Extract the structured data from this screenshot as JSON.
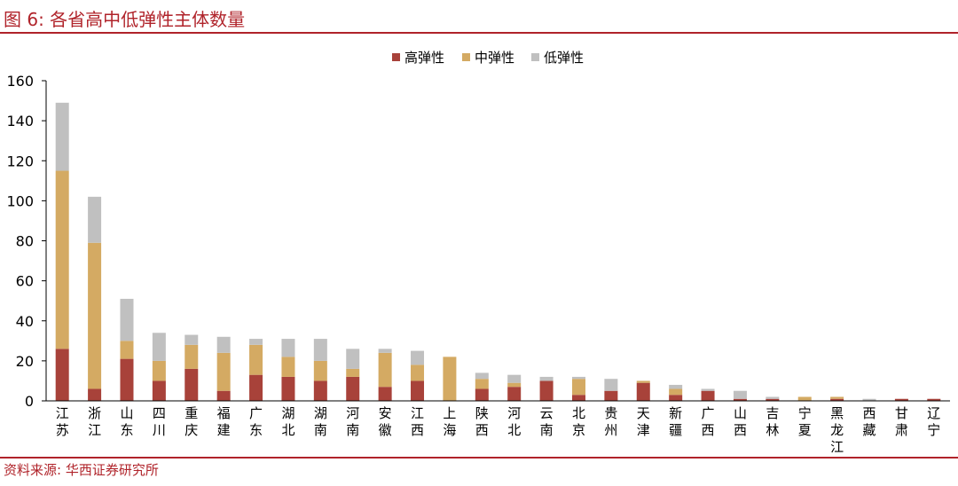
{
  "figure": {
    "title": "图 6:  各省高中低弹性主体数量",
    "source": "资料来源:  华西证券研究所"
  },
  "chart_data": {
    "type": "bar",
    "stacked": true,
    "categories": [
      "江苏",
      "浙江",
      "山东",
      "四川",
      "重庆",
      "福建",
      "广东",
      "湖北",
      "湖南",
      "河南",
      "安徽",
      "江西",
      "上海",
      "陕西",
      "河北",
      "云南",
      "北京",
      "贵州",
      "天津",
      "新疆",
      "广西",
      "山西",
      "吉林",
      "宁夏",
      "黑龙江",
      "西藏",
      "甘肃",
      "辽宁"
    ],
    "series": [
      {
        "name": "高弹性",
        "color": "#a8423a",
        "values": [
          26,
          6,
          21,
          10,
          16,
          5,
          13,
          12,
          10,
          12,
          7,
          10,
          0,
          6,
          7,
          10,
          3,
          5,
          9,
          3,
          5,
          1,
          1,
          0,
          1,
          0,
          1,
          1
        ]
      },
      {
        "name": "中弹性",
        "color": "#d4aa63",
        "values": [
          89,
          73,
          9,
          10,
          12,
          19,
          15,
          10,
          10,
          4,
          17,
          8,
          22,
          5,
          2,
          0,
          8,
          0,
          1,
          3,
          0,
          0,
          0,
          2,
          1,
          0,
          0,
          0
        ]
      },
      {
        "name": "低弹性",
        "color": "#c0c0c0",
        "values": [
          34,
          23,
          21,
          14,
          5,
          8,
          3,
          9,
          11,
          10,
          2,
          7,
          0,
          3,
          4,
          2,
          1,
          6,
          0,
          2,
          1,
          4,
          1,
          0,
          0,
          1,
          0,
          0
        ]
      }
    ],
    "ylim": [
      0,
      160
    ],
    "yticks": [
      0,
      20,
      40,
      60,
      80,
      100,
      120,
      140,
      160
    ],
    "legend": "top-center",
    "grid": false
  }
}
